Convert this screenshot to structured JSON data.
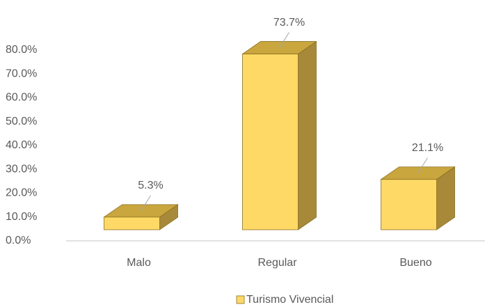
{
  "chart_data": {
    "type": "bar3d",
    "categories": [
      "Malo",
      "Regular",
      "Bueno"
    ],
    "series": [
      {
        "name": "Turismo Vivencial",
        "color": "#ffd966",
        "values": [
          5.3,
          73.7,
          21.1
        ],
        "value_labels": [
          "5.3%",
          "73.7%",
          "21.1%"
        ]
      }
    ],
    "ylim": [
      0,
      80
    ],
    "yticks": [
      {
        "value": 0,
        "label": "0.0%"
      },
      {
        "value": 10,
        "label": "10.0%"
      },
      {
        "value": 20,
        "label": "20.0%"
      },
      {
        "value": 30,
        "label": "30.0%"
      },
      {
        "value": 40,
        "label": "40.0%"
      },
      {
        "value": 50,
        "label": "50.0%"
      },
      {
        "value": 60,
        "label": "60.0%"
      },
      {
        "value": 70,
        "label": "70.0%"
      },
      {
        "value": 80,
        "label": "80.0%"
      }
    ],
    "grid": false,
    "legend": "bottom"
  }
}
